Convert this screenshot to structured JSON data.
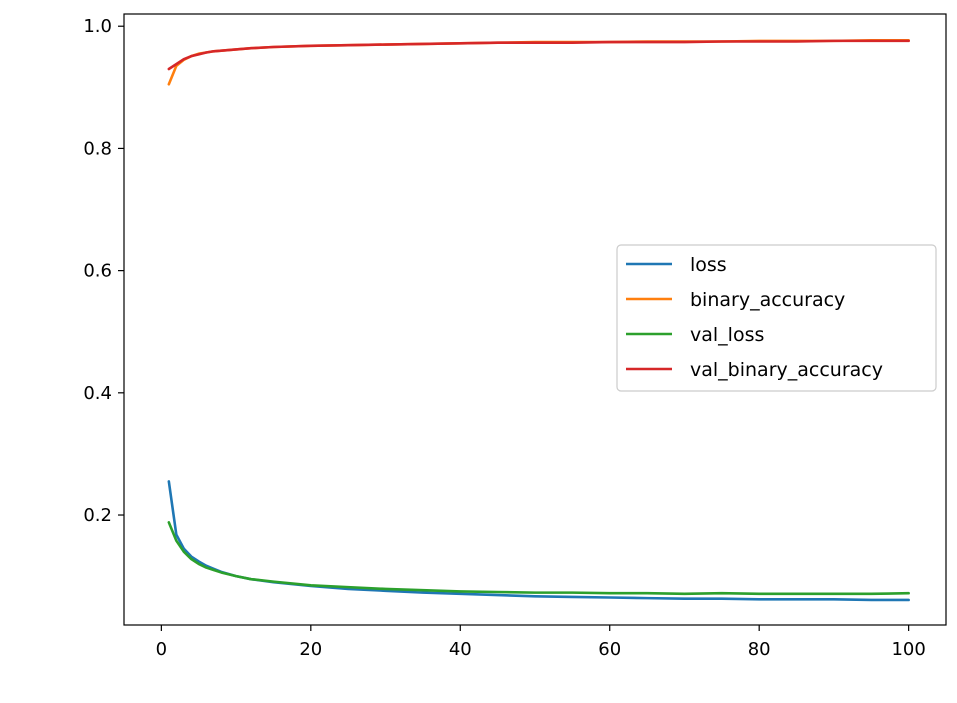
{
  "chart_data": {
    "type": "line",
    "title": "",
    "xlabel": "",
    "ylabel": "",
    "xlim": [
      -5,
      105
    ],
    "ylim": [
      0.02,
      1.02
    ],
    "xticks": [
      0,
      20,
      40,
      60,
      80,
      100
    ],
    "xtick_labels": [
      "0",
      "20",
      "40",
      "60",
      "80",
      "100"
    ],
    "yticks": [
      0.2,
      0.4,
      0.6,
      0.8,
      1.0
    ],
    "ytick_labels": [
      "0.2",
      "0.4",
      "0.6",
      "0.8",
      "1.0"
    ],
    "grid": false,
    "legend_position": "center-right",
    "x": [
      1,
      2,
      3,
      4,
      5,
      6,
      7,
      8,
      10,
      12,
      15,
      20,
      25,
      30,
      35,
      40,
      45,
      50,
      55,
      60,
      65,
      70,
      75,
      80,
      85,
      90,
      95,
      100
    ],
    "series": [
      {
        "name": "loss",
        "color": "#1f77b4",
        "values": [
          0.255,
          0.168,
          0.145,
          0.132,
          0.124,
          0.117,
          0.112,
          0.107,
          0.1,
          0.095,
          0.09,
          0.084,
          0.079,
          0.076,
          0.073,
          0.071,
          0.069,
          0.067,
          0.066,
          0.065,
          0.064,
          0.063,
          0.063,
          0.062,
          0.062,
          0.062,
          0.061,
          0.061
        ]
      },
      {
        "name": "binary_accuracy",
        "color": "#ff7f0e",
        "values": [
          0.905,
          0.935,
          0.945,
          0.951,
          0.955,
          0.957,
          0.959,
          0.96,
          0.962,
          0.964,
          0.966,
          0.968,
          0.969,
          0.97,
          0.971,
          0.972,
          0.973,
          0.974,
          0.974,
          0.974,
          0.975,
          0.975,
          0.975,
          0.976,
          0.976,
          0.976,
          0.977,
          0.977
        ]
      },
      {
        "name": "val_loss",
        "color": "#2ca02c",
        "values": [
          0.188,
          0.158,
          0.14,
          0.128,
          0.12,
          0.114,
          0.11,
          0.106,
          0.1,
          0.095,
          0.091,
          0.085,
          0.082,
          0.079,
          0.077,
          0.075,
          0.074,
          0.073,
          0.073,
          0.072,
          0.072,
          0.071,
          0.072,
          0.071,
          0.071,
          0.071,
          0.071,
          0.072
        ]
      },
      {
        "name": "val_binary_accuracy",
        "color": "#d62728",
        "values": [
          0.93,
          0.938,
          0.946,
          0.951,
          0.954,
          0.957,
          0.959,
          0.96,
          0.962,
          0.964,
          0.966,
          0.968,
          0.969,
          0.97,
          0.971,
          0.972,
          0.973,
          0.973,
          0.973,
          0.974,
          0.974,
          0.974,
          0.975,
          0.975,
          0.975,
          0.976,
          0.976,
          0.976
        ]
      }
    ]
  }
}
